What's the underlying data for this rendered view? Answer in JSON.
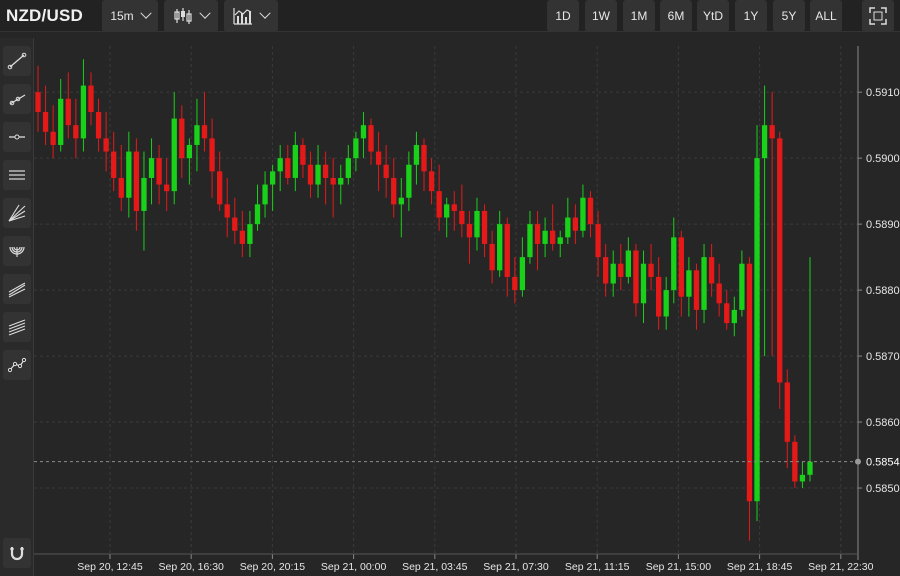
{
  "header": {
    "symbol": "NZD/USD",
    "interval": "15m",
    "chart_type_icon": "candlestick-icon",
    "indicators_icon": "indicators-icon",
    "ranges": [
      "1D",
      "1W",
      "1M",
      "6M",
      "YtD",
      "1Y",
      "5Y",
      "ALL"
    ],
    "fullscreen_icon": "fullscreen-icon"
  },
  "sidebar": {
    "tools": [
      "trend-line-icon",
      "ray-line-icon",
      "horizontal-line-icon",
      "parallel-channel-icon",
      "fan-icon",
      "arc-icon",
      "pitchfork-icon",
      "fib-channel-icon",
      "path-icon"
    ],
    "bottom_tool": "magnet-icon"
  },
  "colors": {
    "up": "#19d119",
    "down": "#e61919",
    "grid": "#3a3a3a",
    "axis_text": "#e6e6e6",
    "price_line": "#8c8c8c"
  },
  "chart_data": {
    "type": "candlestick",
    "symbol": "NZD/USD",
    "current_price": "0.5854",
    "ylim": [
      0.584,
      0.5917
    ],
    "y_ticks": [
      "0.5910",
      "0.5900",
      "0.5890",
      "0.5880",
      "0.5870",
      "0.5860",
      "0.5850"
    ],
    "x_ticks": [
      "Sep 20, 12:45",
      "Sep 20, 16:30",
      "Sep 20, 20:15",
      "Sep 21, 00:00",
      "Sep 21, 03:45",
      "Sep 21, 07:30",
      "Sep 21, 11:15",
      "Sep 21, 15:00",
      "Sep 21, 18:45",
      "Sep 21, 22:30"
    ],
    "candles_ohlc": [
      [
        0.591,
        0.5914,
        0.5904,
        0.5907
      ],
      [
        0.5907,
        0.5911,
        0.5902,
        0.5904
      ],
      [
        0.5904,
        0.5908,
        0.59,
        0.5902
      ],
      [
        0.5902,
        0.5912,
        0.5901,
        0.5909
      ],
      [
        0.5909,
        0.5913,
        0.5903,
        0.5905
      ],
      [
        0.5905,
        0.5909,
        0.59,
        0.5903
      ],
      [
        0.5903,
        0.5915,
        0.5901,
        0.5911
      ],
      [
        0.5911,
        0.5913,
        0.5905,
        0.5907
      ],
      [
        0.5907,
        0.5909,
        0.5901,
        0.5903
      ],
      [
        0.5903,
        0.5907,
        0.5898,
        0.5901
      ],
      [
        0.5901,
        0.5904,
        0.5895,
        0.5897
      ],
      [
        0.5897,
        0.5902,
        0.5892,
        0.5894
      ],
      [
        0.5894,
        0.5904,
        0.5891,
        0.5901
      ],
      [
        0.5901,
        0.5903,
        0.5889,
        0.5892
      ],
      [
        0.5892,
        0.5901,
        0.5886,
        0.5897
      ],
      [
        0.5897,
        0.5903,
        0.5893,
        0.59
      ],
      [
        0.59,
        0.5902,
        0.5893,
        0.5896
      ],
      [
        0.5896,
        0.59,
        0.5892,
        0.5895
      ],
      [
        0.5895,
        0.591,
        0.5893,
        0.5906
      ],
      [
        0.5906,
        0.5908,
        0.5897,
        0.59
      ],
      [
        0.59,
        0.5903,
        0.5896,
        0.5902
      ],
      [
        0.5902,
        0.5909,
        0.5898,
        0.5905
      ],
      [
        0.5905,
        0.591,
        0.5901,
        0.5903
      ],
      [
        0.5903,
        0.5906,
        0.5894,
        0.5898
      ],
      [
        0.5898,
        0.5901,
        0.5892,
        0.5893
      ],
      [
        0.5893,
        0.5897,
        0.5888,
        0.5891
      ],
      [
        0.5891,
        0.5894,
        0.5887,
        0.5889
      ],
      [
        0.5889,
        0.5892,
        0.5885,
        0.5887
      ],
      [
        0.5887,
        0.5892,
        0.5885,
        0.589
      ],
      [
        0.589,
        0.5896,
        0.5889,
        0.5893
      ],
      [
        0.5893,
        0.5898,
        0.5891,
        0.5896
      ],
      [
        0.5896,
        0.5899,
        0.5892,
        0.5898
      ],
      [
        0.5898,
        0.5902,
        0.5895,
        0.59
      ],
      [
        0.59,
        0.5902,
        0.5896,
        0.5897
      ],
      [
        0.5897,
        0.5904,
        0.5895,
        0.5902
      ],
      [
        0.5902,
        0.5903,
        0.5897,
        0.5899
      ],
      [
        0.5899,
        0.5901,
        0.5894,
        0.5896
      ],
      [
        0.5896,
        0.5902,
        0.5894,
        0.5899
      ],
      [
        0.5899,
        0.5901,
        0.5893,
        0.5897
      ],
      [
        0.5897,
        0.59,
        0.5891,
        0.5896
      ],
      [
        0.5896,
        0.5899,
        0.5893,
        0.5897
      ],
      [
        0.5897,
        0.5902,
        0.5896,
        0.59
      ],
      [
        0.59,
        0.5904,
        0.5898,
        0.5903
      ],
      [
        0.5903,
        0.5907,
        0.59,
        0.5905
      ],
      [
        0.5905,
        0.5906,
        0.5899,
        0.5901
      ],
      [
        0.5901,
        0.5904,
        0.5895,
        0.5899
      ],
      [
        0.5899,
        0.5902,
        0.5894,
        0.5897
      ],
      [
        0.5897,
        0.59,
        0.5891,
        0.5893
      ],
      [
        0.5893,
        0.5897,
        0.5888,
        0.5894
      ],
      [
        0.5894,
        0.5901,
        0.5892,
        0.5899
      ],
      [
        0.5899,
        0.5904,
        0.5896,
        0.5902
      ],
      [
        0.5902,
        0.5903,
        0.5895,
        0.5898
      ],
      [
        0.5898,
        0.59,
        0.5893,
        0.5895
      ],
      [
        0.5895,
        0.5899,
        0.5889,
        0.5891
      ],
      [
        0.5891,
        0.5894,
        0.5888,
        0.5893
      ],
      [
        0.5893,
        0.5895,
        0.5889,
        0.5892
      ],
      [
        0.5892,
        0.5896,
        0.5888,
        0.589
      ],
      [
        0.589,
        0.5892,
        0.5884,
        0.5888
      ],
      [
        0.5888,
        0.5894,
        0.5886,
        0.5892
      ],
      [
        0.5892,
        0.5893,
        0.5885,
        0.5887
      ],
      [
        0.5887,
        0.5889,
        0.5881,
        0.5883
      ],
      [
        0.5883,
        0.5892,
        0.5882,
        0.589
      ],
      [
        0.589,
        0.5891,
        0.5879,
        0.5882
      ],
      [
        0.5882,
        0.5885,
        0.5878,
        0.588
      ],
      [
        0.588,
        0.5888,
        0.5879,
        0.5885
      ],
      [
        0.5885,
        0.5892,
        0.5884,
        0.589
      ],
      [
        0.589,
        0.5892,
        0.5883,
        0.5887
      ],
      [
        0.5887,
        0.5891,
        0.5885,
        0.5889
      ],
      [
        0.5889,
        0.5893,
        0.5886,
        0.5887
      ],
      [
        0.5887,
        0.5889,
        0.5885,
        0.5888
      ],
      [
        0.5888,
        0.5894,
        0.5887,
        0.5891
      ],
      [
        0.5891,
        0.5893,
        0.5887,
        0.5889
      ],
      [
        0.5889,
        0.5896,
        0.5888,
        0.5894
      ],
      [
        0.5894,
        0.5895,
        0.5888,
        0.589
      ],
      [
        0.589,
        0.5892,
        0.5882,
        0.5885
      ],
      [
        0.5885,
        0.5887,
        0.5879,
        0.5881
      ],
      [
        0.5881,
        0.5886,
        0.5879,
        0.5884
      ],
      [
        0.5884,
        0.5887,
        0.588,
        0.5882
      ],
      [
        0.5882,
        0.5888,
        0.5881,
        0.5886
      ],
      [
        0.5886,
        0.5887,
        0.5876,
        0.5878
      ],
      [
        0.5878,
        0.5886,
        0.5875,
        0.5884
      ],
      [
        0.5884,
        0.5887,
        0.588,
        0.5882
      ],
      [
        0.5882,
        0.5885,
        0.5874,
        0.5876
      ],
      [
        0.5876,
        0.5882,
        0.5874,
        0.588
      ],
      [
        0.588,
        0.5891,
        0.5878,
        0.5888
      ],
      [
        0.5888,
        0.5889,
        0.5876,
        0.5879
      ],
      [
        0.5879,
        0.5885,
        0.5876,
        0.5883
      ],
      [
        0.5883,
        0.5884,
        0.5874,
        0.5877
      ],
      [
        0.5877,
        0.5887,
        0.5875,
        0.5885
      ],
      [
        0.5885,
        0.5887,
        0.5879,
        0.5881
      ],
      [
        0.5881,
        0.5884,
        0.5876,
        0.5878
      ],
      [
        0.5878,
        0.588,
        0.5874,
        0.5875
      ],
      [
        0.5875,
        0.5879,
        0.5873,
        0.5877
      ],
      [
        0.5877,
        0.5886,
        0.5876,
        0.5884
      ],
      [
        0.5884,
        0.5885,
        0.5842,
        0.5848
      ],
      [
        0.5848,
        0.5905,
        0.5845,
        0.59
      ],
      [
        0.59,
        0.5911,
        0.587,
        0.5905
      ],
      [
        0.5905,
        0.591,
        0.587,
        0.5903
      ],
      [
        0.5903,
        0.5904,
        0.5862,
        0.5866
      ],
      [
        0.5866,
        0.5868,
        0.5853,
        0.5857
      ],
      [
        0.5857,
        0.5858,
        0.585,
        0.5851
      ],
      [
        0.5851,
        0.5854,
        0.585,
        0.5852
      ],
      [
        0.5852,
        0.5885,
        0.5851,
        0.5854
      ]
    ]
  }
}
